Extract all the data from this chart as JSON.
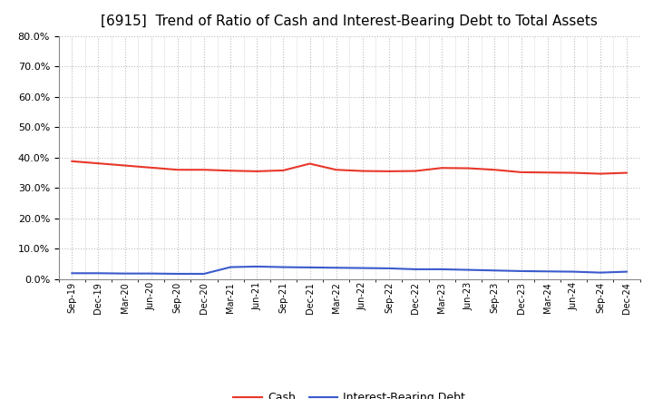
{
  "title": "[6915]  Trend of Ratio of Cash and Interest-Bearing Debt to Total Assets",
  "x_labels": [
    "Sep-19",
    "Dec-19",
    "Mar-20",
    "Jun-20",
    "Sep-20",
    "Dec-20",
    "Mar-21",
    "Jun-21",
    "Sep-21",
    "Dec-21",
    "Mar-22",
    "Jun-22",
    "Sep-22",
    "Dec-22",
    "Mar-23",
    "Jun-23",
    "Sep-23",
    "Dec-23",
    "Mar-24",
    "Jun-24",
    "Sep-24",
    "Dec-24"
  ],
  "cash": [
    0.388,
    0.381,
    0.374,
    0.367,
    0.36,
    0.36,
    0.357,
    0.355,
    0.358,
    0.38,
    0.36,
    0.356,
    0.355,
    0.356,
    0.366,
    0.365,
    0.36,
    0.352,
    0.351,
    0.35,
    0.347,
    0.35
  ],
  "debt": [
    0.02,
    0.02,
    0.019,
    0.019,
    0.018,
    0.018,
    0.04,
    0.042,
    0.04,
    0.039,
    0.038,
    0.037,
    0.036,
    0.033,
    0.033,
    0.031,
    0.029,
    0.027,
    0.026,
    0.025,
    0.022,
    0.025
  ],
  "cash_color": "#e8372a",
  "debt_color": "#3a5bcc",
  "ylim": [
    0.0,
    0.8
  ],
  "yticks": [
    0.0,
    0.1,
    0.2,
    0.3,
    0.4,
    0.5,
    0.6,
    0.7,
    0.8
  ],
  "background_color": "#ffffff",
  "grid_color": "#bbbbbb",
  "title_fontsize": 11,
  "legend_cash": "Cash",
  "legend_debt": "Interest-Bearing Debt"
}
